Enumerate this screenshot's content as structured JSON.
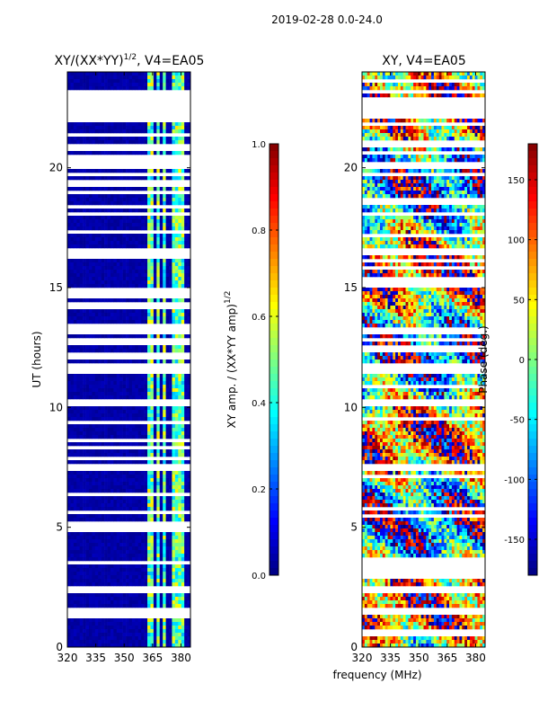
{
  "suptitle": "2019-02-28 0.0-24.0",
  "xlabel_shared": "frequency (MHz)",
  "colors": {
    "jet": [
      "#00007f",
      "#0000ff",
      "#007fff",
      "#00ffff",
      "#7fff7f",
      "#ffff00",
      "#ff7f00",
      "#ff0000",
      "#7f0000"
    ],
    "background": "#ffffff",
    "axis": "#000000"
  },
  "chart_data": [
    {
      "type": "heatmap",
      "title": "XY/(XX*YY)",
      "title_sup": "1/2",
      "title_suffix": ", V4=EA05",
      "xlabel": "",
      "ylabel": "UT (hours)",
      "xlim": [
        320,
        385
      ],
      "ylim": [
        0,
        24
      ],
      "xticks": [
        320,
        335,
        350,
        365,
        380
      ],
      "yticks": [
        0,
        5,
        10,
        15,
        20
      ],
      "colorbar": {
        "label": "XY amp. / (XX*YY amp)",
        "label_sup": "1/2",
        "range": [
          0.0,
          1.0
        ],
        "ticks": [
          "0.0",
          "0.2",
          "0.4",
          "0.6",
          "0.8",
          "1.0"
        ]
      },
      "bright_bands_mhz": [
        [
          362,
          366
        ],
        [
          367,
          369
        ],
        [
          370,
          372
        ],
        [
          375,
          378
        ],
        [
          379,
          382
        ]
      ],
      "data_gaps_hours": [
        [
          22.0,
          23.0
        ],
        [
          19.9,
          20.2
        ],
        [
          16.3,
          16.7
        ],
        [
          13.0,
          13.3
        ],
        [
          11.5,
          11.9
        ],
        [
          10.1,
          10.3
        ],
        [
          7.4,
          7.6
        ],
        [
          2.3,
          2.5
        ],
        [
          1.4,
          1.6
        ]
      ]
    },
    {
      "type": "heatmap",
      "title": "XY, V4=EA05",
      "xlabel": "",
      "ylabel": "",
      "xlim": [
        320,
        385
      ],
      "ylim": [
        0,
        24
      ],
      "xticks": [
        320,
        335,
        350,
        365,
        380
      ],
      "yticks": [
        0,
        5,
        10,
        15,
        20
      ],
      "colorbar": {
        "label": "Phase (deg.)",
        "range": [
          -180,
          180
        ],
        "ticks": [
          "-150",
          "-100",
          "-50",
          "0",
          "50",
          "100",
          "150"
        ]
      },
      "data_gaps_hours": [
        [
          22.0,
          23.0
        ],
        [
          19.9,
          20.2
        ],
        [
          16.3,
          16.7
        ],
        [
          13.0,
          13.3
        ],
        [
          11.5,
          11.9
        ],
        [
          10.1,
          10.3
        ],
        [
          7.4,
          7.6
        ],
        [
          2.3,
          2.5
        ],
        [
          1.4,
          1.6
        ]
      ]
    }
  ]
}
